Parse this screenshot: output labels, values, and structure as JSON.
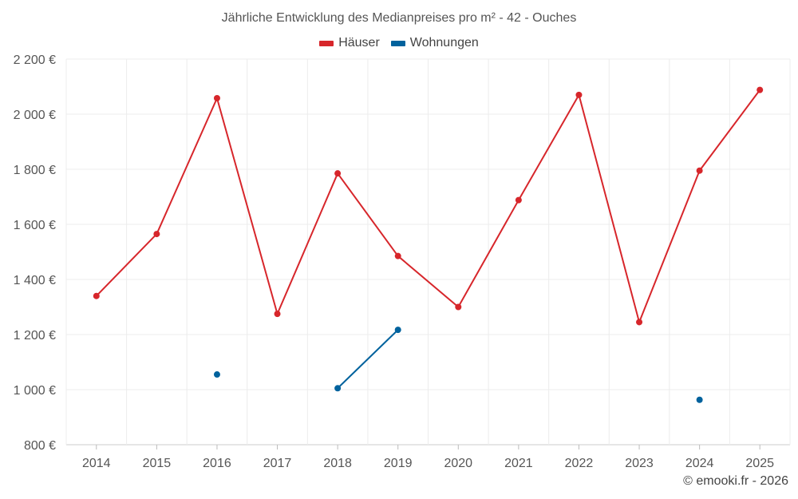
{
  "chart_data": {
    "type": "line",
    "title": "Jährliche Entwicklung des Medianpreises pro m² - 42 - Ouches",
    "categories": [
      "2014",
      "2015",
      "2016",
      "2017",
      "2018",
      "2019",
      "2020",
      "2021",
      "2022",
      "2023",
      "2024",
      "2025"
    ],
    "ylim": [
      800,
      2200
    ],
    "yticks": [
      800,
      1000,
      1200,
      1400,
      1600,
      1800,
      2000,
      2200
    ],
    "ytick_labels": [
      "800 €",
      "1 000 €",
      "1 200 €",
      "1 400 €",
      "1 600 €",
      "1 800 €",
      "2 000 €",
      "2 200 €"
    ],
    "xlabel": "",
    "ylabel": "",
    "grid": true,
    "legend_position": "top-center",
    "series": [
      {
        "name": "Häuser",
        "color": "#d7262b",
        "values": [
          1340,
          1565,
          2058,
          1275,
          1785,
          1485,
          1300,
          1688,
          2070,
          1245,
          1795,
          2088
        ]
      },
      {
        "name": "Wohnungen",
        "color": "#00629d",
        "values": [
          null,
          null,
          1055,
          null,
          1005,
          1217,
          null,
          null,
          null,
          null,
          963,
          null
        ]
      }
    ]
  },
  "credit": "© emooki.fr - 2026"
}
